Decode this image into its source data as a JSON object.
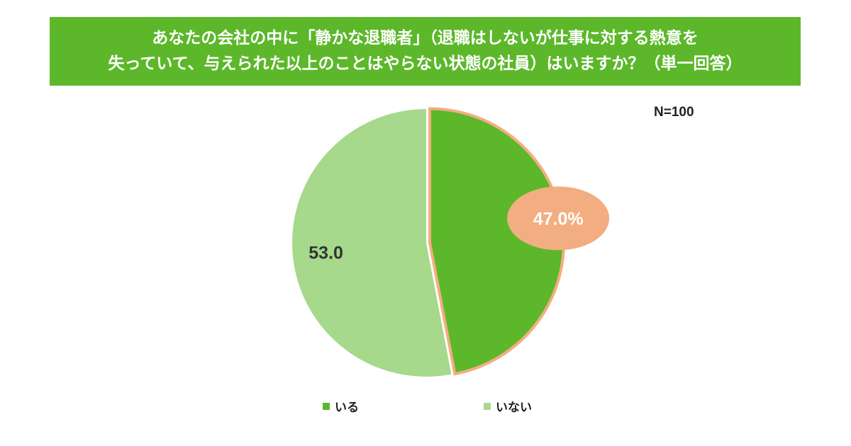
{
  "title": {
    "line1": "あなたの会社の中に「静かな退職者」（退職はしないが仕事に対する熱意を",
    "line2": "失っていて、与えられた以上のことはやらない状態の社員）はいますか？（単一回答）"
  },
  "sample_size": "N=100",
  "colors": {
    "title_bg": "#5cb82a",
    "iru": "#5cb82a",
    "inai": "#a6d98b",
    "highlight": "#f2ae80"
  },
  "chart_data": {
    "type": "pie",
    "slices": [
      {
        "label": "いる",
        "value": 47.0,
        "data_label": "47.0%",
        "color": "#5cb82a"
      },
      {
        "label": "いない",
        "value": 53.0,
        "data_label": "53.0",
        "color": "#a6d98b"
      }
    ],
    "start": "12 o'clock",
    "direction": "clockwise",
    "highlighted_slice": "いる",
    "legend": [
      "いる",
      "いない"
    ],
    "legend_position": "bottom"
  }
}
